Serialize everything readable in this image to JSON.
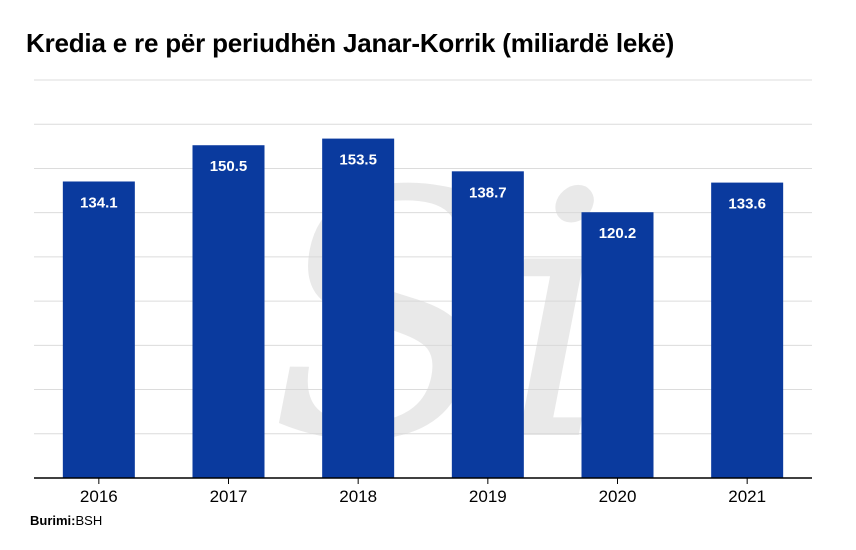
{
  "colors": {
    "bar": "#0a3a9e",
    "grid": "#dcdcdc",
    "axis": "#000000",
    "watermark": "#d8d8d8"
  },
  "watermark_letters": "Si",
  "chart_data": {
    "type": "bar",
    "title": "Kredia e re për periudhën Janar-Korrik (miliardë lekë)",
    "categories": [
      "2016",
      "2017",
      "2018",
      "2019",
      "2020",
      "2021"
    ],
    "values": [
      134.1,
      150.5,
      153.5,
      138.7,
      120.2,
      133.6
    ],
    "data_labels": [
      "134.1",
      "150.5",
      "153.5",
      "138.7",
      "120.2",
      "133.6"
    ],
    "xlabel": "",
    "ylabel": "",
    "ylim": [
      0,
      180
    ],
    "grid": true,
    "legend": false
  },
  "source": {
    "label": "Burimi:",
    "value": "BSH"
  }
}
